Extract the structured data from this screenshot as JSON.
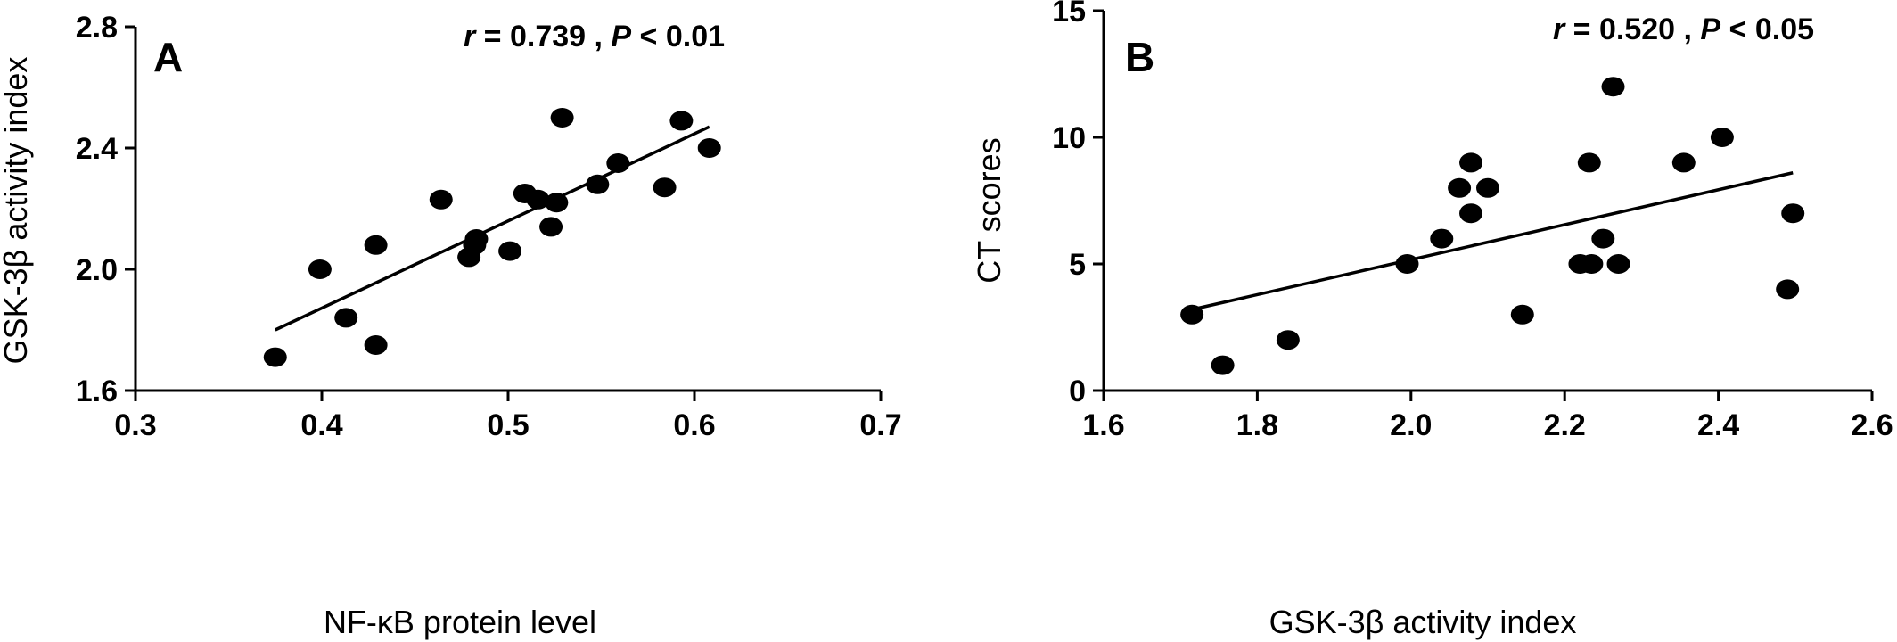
{
  "chart_data": [
    {
      "type": "scatter",
      "panel_label": "A",
      "annotation": {
        "r_symbol": "r",
        "r_text": " = 0.739 , ",
        "p_symbol": "P",
        "p_text": " < 0.01"
      },
      "xlabel": "NF-κB protein level",
      "ylabel": "GSK-3β activity index",
      "xlim": [
        0.3,
        0.7
      ],
      "ylim": [
        1.6,
        2.8
      ],
      "xticks": [
        0.3,
        0.4,
        0.5,
        0.6,
        0.7
      ],
      "xtick_labels": [
        "0.3",
        "0.4",
        "0.5",
        "0.6",
        "0.7"
      ],
      "yticks": [
        1.6,
        2.0,
        2.4,
        2.8
      ],
      "ytick_labels": [
        "1.6",
        "2.0",
        "2.4",
        "2.8"
      ],
      "grid": false,
      "points": [
        {
          "x": 0.375,
          "y": 1.71
        },
        {
          "x": 0.399,
          "y": 2.0
        },
        {
          "x": 0.413,
          "y": 1.84
        },
        {
          "x": 0.429,
          "y": 2.08
        },
        {
          "x": 0.429,
          "y": 1.75
        },
        {
          "x": 0.464,
          "y": 2.23
        },
        {
          "x": 0.479,
          "y": 2.04
        },
        {
          "x": 0.482,
          "y": 2.08
        },
        {
          "x": 0.483,
          "y": 2.1
        },
        {
          "x": 0.501,
          "y": 2.06
        },
        {
          "x": 0.509,
          "y": 2.25
        },
        {
          "x": 0.516,
          "y": 2.23
        },
        {
          "x": 0.523,
          "y": 2.14
        },
        {
          "x": 0.526,
          "y": 2.22
        },
        {
          "x": 0.529,
          "y": 2.5
        },
        {
          "x": 0.548,
          "y": 2.28
        },
        {
          "x": 0.559,
          "y": 2.35
        },
        {
          "x": 0.584,
          "y": 2.27
        },
        {
          "x": 0.593,
          "y": 2.49
        },
        {
          "x": 0.608,
          "y": 2.4
        }
      ],
      "fit_line": [
        {
          "x": 0.375,
          "y": 1.8
        },
        {
          "x": 0.608,
          "y": 2.47
        }
      ]
    },
    {
      "type": "scatter",
      "panel_label": "B",
      "annotation": {
        "r_symbol": "r",
        "r_text": " = 0.520 , ",
        "p_symbol": "P",
        "p_text": " < 0.05"
      },
      "xlabel": "GSK-3β  activity index",
      "ylabel": "CT scores",
      "xlim": [
        1.6,
        2.6
      ],
      "ylim": [
        0,
        15
      ],
      "xticks": [
        1.6,
        1.8,
        2.0,
        2.2,
        2.4,
        2.6
      ],
      "xtick_labels": [
        "1.6",
        "1.8",
        "2.0",
        "2.2",
        "2.4",
        "2.6"
      ],
      "yticks": [
        0,
        5,
        10,
        15
      ],
      "ytick_labels": [
        "0",
        "5",
        "10",
        "15"
      ],
      "grid": false,
      "points": [
        {
          "x": 1.715,
          "y": 3
        },
        {
          "x": 1.755,
          "y": 1
        },
        {
          "x": 1.84,
          "y": 2
        },
        {
          "x": 1.995,
          "y": 5
        },
        {
          "x": 2.04,
          "y": 6
        },
        {
          "x": 2.063,
          "y": 8
        },
        {
          "x": 2.078,
          "y": 9
        },
        {
          "x": 2.078,
          "y": 7
        },
        {
          "x": 2.1,
          "y": 8
        },
        {
          "x": 2.145,
          "y": 3
        },
        {
          "x": 2.22,
          "y": 5
        },
        {
          "x": 2.232,
          "y": 9
        },
        {
          "x": 2.235,
          "y": 5
        },
        {
          "x": 2.25,
          "y": 6
        },
        {
          "x": 2.263,
          "y": 12
        },
        {
          "x": 2.27,
          "y": 5
        },
        {
          "x": 2.355,
          "y": 9
        },
        {
          "x": 2.405,
          "y": 10
        },
        {
          "x": 2.49,
          "y": 4
        },
        {
          "x": 2.497,
          "y": 7
        }
      ],
      "fit_line": [
        {
          "x": 1.715,
          "y": 3.2
        },
        {
          "x": 2.497,
          "y": 8.6
        }
      ]
    }
  ]
}
